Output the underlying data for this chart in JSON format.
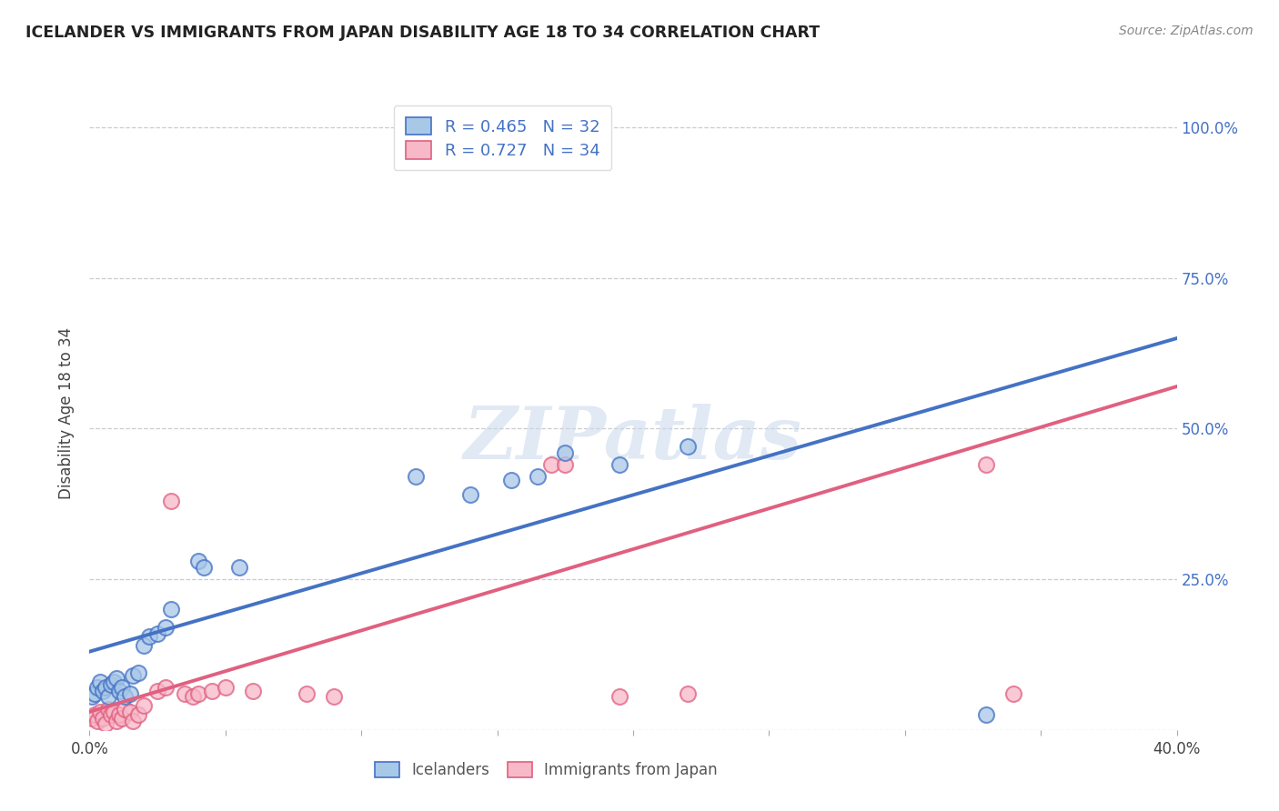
{
  "title": "ICELANDER VS IMMIGRANTS FROM JAPAN DISABILITY AGE 18 TO 34 CORRELATION CHART",
  "source": "Source: ZipAtlas.com",
  "ylabel_label": "Disability Age 18 to 34",
  "xlim": [
    0.0,
    0.4
  ],
  "ylim": [
    0.0,
    1.05
  ],
  "xticks": [
    0.0,
    0.05,
    0.1,
    0.15,
    0.2,
    0.25,
    0.3,
    0.35,
    0.4
  ],
  "xticklabels": [
    "0.0%",
    "",
    "",
    "",
    "",
    "",
    "",
    "",
    "40.0%"
  ],
  "ytick_positions": [
    0.0,
    0.25,
    0.5,
    0.75,
    1.0
  ],
  "yticklabels": [
    "",
    "25.0%",
    "50.0%",
    "75.0%",
    "100.0%"
  ],
  "icelander_color": "#a8c8e8",
  "japan_color": "#f7b8c8",
  "icelander_line_color": "#4472c4",
  "japan_line_color": "#e06080",
  "watermark_text": "ZIPatlas",
  "background_color": "#ffffff",
  "grid_color": "#cccccc",
  "icelander_x": [
    0.001,
    0.002,
    0.003,
    0.004,
    0.005,
    0.006,
    0.007,
    0.008,
    0.009,
    0.01,
    0.011,
    0.012,
    0.013,
    0.015,
    0.016,
    0.018,
    0.02,
    0.022,
    0.025,
    0.028,
    0.03,
    0.04,
    0.042,
    0.055,
    0.12,
    0.14,
    0.155,
    0.165,
    0.175,
    0.195,
    0.22,
    0.33
  ],
  "icelander_y": [
    0.055,
    0.06,
    0.07,
    0.08,
    0.065,
    0.07,
    0.055,
    0.075,
    0.08,
    0.085,
    0.065,
    0.07,
    0.055,
    0.06,
    0.09,
    0.095,
    0.14,
    0.155,
    0.16,
    0.17,
    0.2,
    0.28,
    0.27,
    0.27,
    0.42,
    0.39,
    0.415,
    0.42,
    0.46,
    0.44,
    0.47,
    0.025
  ],
  "japan_x": [
    0.001,
    0.002,
    0.003,
    0.004,
    0.005,
    0.006,
    0.007,
    0.008,
    0.009,
    0.01,
    0.011,
    0.012,
    0.013,
    0.015,
    0.016,
    0.018,
    0.02,
    0.025,
    0.028,
    0.03,
    0.035,
    0.038,
    0.04,
    0.045,
    0.05,
    0.06,
    0.08,
    0.09,
    0.17,
    0.175,
    0.195,
    0.22,
    0.33,
    0.34
  ],
  "japan_y": [
    0.02,
    0.025,
    0.015,
    0.03,
    0.02,
    0.01,
    0.035,
    0.025,
    0.03,
    0.015,
    0.025,
    0.02,
    0.035,
    0.03,
    0.015,
    0.025,
    0.04,
    0.065,
    0.07,
    0.38,
    0.06,
    0.055,
    0.06,
    0.065,
    0.07,
    0.065,
    0.06,
    0.055,
    0.44,
    0.44,
    0.055,
    0.06,
    0.44,
    0.06
  ],
  "blue_line_x0": 0.0,
  "blue_line_y0": 0.13,
  "blue_line_x1": 0.4,
  "blue_line_y1": 0.65,
  "pink_line_x0": 0.0,
  "pink_line_y0": 0.03,
  "pink_line_x1": 0.4,
  "pink_line_y1": 0.57
}
